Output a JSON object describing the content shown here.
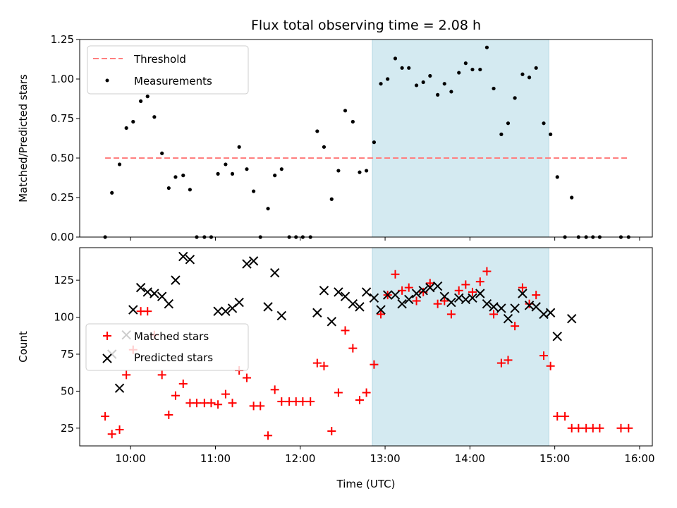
{
  "chart_data": [
    {
      "type": "scatter",
      "title": "Flux total observing time = 2.08 h",
      "xlabel": "",
      "ylabel": "Matched/Predicted stars",
      "xlim": [
        9.4,
        16.15
      ],
      "ylim": [
        0,
        1.25
      ],
      "yticks": [
        0,
        0.25,
        0.5,
        0.75,
        1.0,
        1.25
      ],
      "ytick_labels": [
        "0.00",
        "0.25",
        "0.50",
        "0.75",
        "1.00",
        "1.25"
      ],
      "legend": "top-left",
      "shaded_span": {
        "x_start": 12.85,
        "x_end": 14.93,
        "color": "#d4eaf1"
      },
      "series": [
        {
          "name": "Threshold",
          "style": "dashed-line",
          "color": "#ff7f7f",
          "x": [
            9.7,
            15.87
          ],
          "y": [
            0.5,
            0.5
          ]
        },
        {
          "name": "Measurements",
          "style": "dots",
          "color": "#000000",
          "x": [
            9.7,
            9.78,
            9.87,
            9.95,
            10.03,
            10.12,
            10.2,
            10.28,
            10.37,
            10.45,
            10.53,
            10.62,
            10.7,
            10.78,
            10.87,
            10.95,
            11.03,
            11.12,
            11.2,
            11.28,
            11.37,
            11.45,
            11.53,
            11.62,
            11.7,
            11.78,
            11.87,
            11.95,
            12.03,
            12.12,
            12.2,
            12.28,
            12.37,
            12.45,
            12.53,
            12.62,
            12.7,
            12.78,
            12.87,
            12.95,
            13.03,
            13.12,
            13.2,
            13.28,
            13.37,
            13.45,
            13.53,
            13.62,
            13.7,
            13.78,
            13.87,
            13.95,
            14.03,
            14.12,
            14.2,
            14.28,
            14.37,
            14.45,
            14.53,
            14.62,
            14.7,
            14.78,
            14.87,
            14.95,
            15.03,
            15.12,
            15.2,
            15.28,
            15.37,
            15.45,
            15.53,
            15.78,
            15.87
          ],
          "y": [
            0.0,
            0.28,
            0.46,
            0.69,
            0.73,
            0.86,
            0.89,
            0.76,
            0.53,
            0.31,
            0.38,
            0.39,
            0.3,
            0.0,
            0.0,
            0.0,
            0.4,
            0.46,
            0.4,
            0.57,
            0.43,
            0.29,
            0.0,
            0.18,
            0.39,
            0.43,
            0.0,
            0.0,
            0.0,
            0.0,
            0.67,
            0.57,
            0.24,
            0.42,
            0.8,
            0.73,
            0.41,
            0.42,
            0.6,
            0.97,
            1.0,
            1.13,
            1.07,
            1.07,
            0.96,
            0.98,
            1.02,
            0.9,
            0.97,
            0.92,
            1.04,
            1.1,
            1.06,
            1.06,
            1.2,
            0.94,
            0.65,
            0.72,
            0.88,
            1.03,
            1.01,
            1.07,
            0.72,
            0.65,
            0.38,
            0.0,
            0.25,
            0.0,
            0.0,
            0.0,
            0.0,
            0.0,
            0.0
          ]
        }
      ]
    },
    {
      "type": "scatter",
      "title": "",
      "xlabel": "Time (UTC)",
      "ylabel": "Count",
      "xlim": [
        9.4,
        16.15
      ],
      "ylim": [
        13,
        147
      ],
      "yticks": [
        25,
        50,
        75,
        100,
        125
      ],
      "ytick_labels": [
        "25",
        "50",
        "75",
        "100",
        "125"
      ],
      "xticks": [
        10,
        11,
        12,
        13,
        14,
        15,
        16
      ],
      "xtick_labels": [
        "10:00",
        "11:00",
        "12:00",
        "13:00",
        "14:00",
        "15:00",
        "16:00"
      ],
      "legend": "center-left",
      "shaded_span": {
        "x_start": 12.85,
        "x_end": 14.93,
        "color": "#d4eaf1"
      },
      "series": [
        {
          "name": "Matched stars",
          "style": "plus",
          "color": "#ff0000",
          "x": [
            9.7,
            9.78,
            9.87,
            9.95,
            10.03,
            10.12,
            10.2,
            10.28,
            10.37,
            10.45,
            10.53,
            10.62,
            10.7,
            10.78,
            10.87,
            10.95,
            11.03,
            11.12,
            11.2,
            11.28,
            11.37,
            11.45,
            11.53,
            11.62,
            11.7,
            11.78,
            11.87,
            11.95,
            12.03,
            12.12,
            12.2,
            12.28,
            12.37,
            12.45,
            12.53,
            12.62,
            12.7,
            12.78,
            12.87,
            12.95,
            13.03,
            13.12,
            13.2,
            13.28,
            13.37,
            13.45,
            13.53,
            13.62,
            13.7,
            13.78,
            13.87,
            13.95,
            14.03,
            14.12,
            14.2,
            14.28,
            14.37,
            14.45,
            14.53,
            14.62,
            14.7,
            14.78,
            14.87,
            14.95,
            15.03,
            15.12,
            15.2,
            15.28,
            15.37,
            15.45,
            15.53,
            15.78,
            15.87
          ],
          "y": [
            33,
            21,
            24,
            61,
            78,
            104,
            104,
            88,
            61,
            34,
            47,
            55,
            42,
            42,
            42,
            42,
            41,
            48,
            42,
            64,
            59,
            40,
            40,
            20,
            51,
            43,
            43,
            43,
            43,
            43,
            69,
            67,
            23,
            49,
            91,
            79,
            44,
            49,
            68,
            102,
            115,
            129,
            118,
            120,
            111,
            117,
            123,
            109,
            111,
            102,
            118,
            122,
            117,
            124,
            131,
            102,
            69,
            71,
            94,
            120,
            109,
            115,
            74,
            67,
            33,
            33,
            25,
            25,
            25,
            25,
            25,
            25,
            25
          ]
        },
        {
          "name": "Predicted stars",
          "style": "x",
          "color": "#000000",
          "x": [
            9.78,
            9.87,
            9.95,
            10.03,
            10.12,
            10.2,
            10.28,
            10.37,
            10.45,
            10.53,
            10.62,
            10.7,
            11.03,
            11.12,
            11.2,
            11.28,
            11.37,
            11.45,
            11.62,
            11.7,
            11.78,
            12.2,
            12.28,
            12.37,
            12.45,
            12.53,
            12.62,
            12.7,
            12.78,
            12.87,
            12.95,
            13.03,
            13.12,
            13.2,
            13.28,
            13.37,
            13.45,
            13.53,
            13.62,
            13.7,
            13.78,
            13.87,
            13.95,
            14.03,
            14.12,
            14.2,
            14.28,
            14.37,
            14.45,
            14.53,
            14.62,
            14.7,
            14.78,
            14.87,
            14.95,
            15.03,
            15.2
          ],
          "y": [
            75,
            52,
            88,
            105,
            120,
            117,
            116,
            114,
            109,
            125,
            141,
            139,
            104,
            104,
            106,
            110,
            136,
            138,
            107,
            130,
            101,
            103,
            118,
            97,
            117,
            114,
            109,
            107,
            117,
            113,
            105,
            115,
            115,
            109,
            112,
            116,
            118,
            120,
            121,
            114,
            110,
            113,
            112,
            113,
            116,
            109,
            107,
            106,
            99,
            106,
            116,
            108,
            107,
            102,
            103,
            87,
            99
          ]
        }
      ]
    }
  ]
}
